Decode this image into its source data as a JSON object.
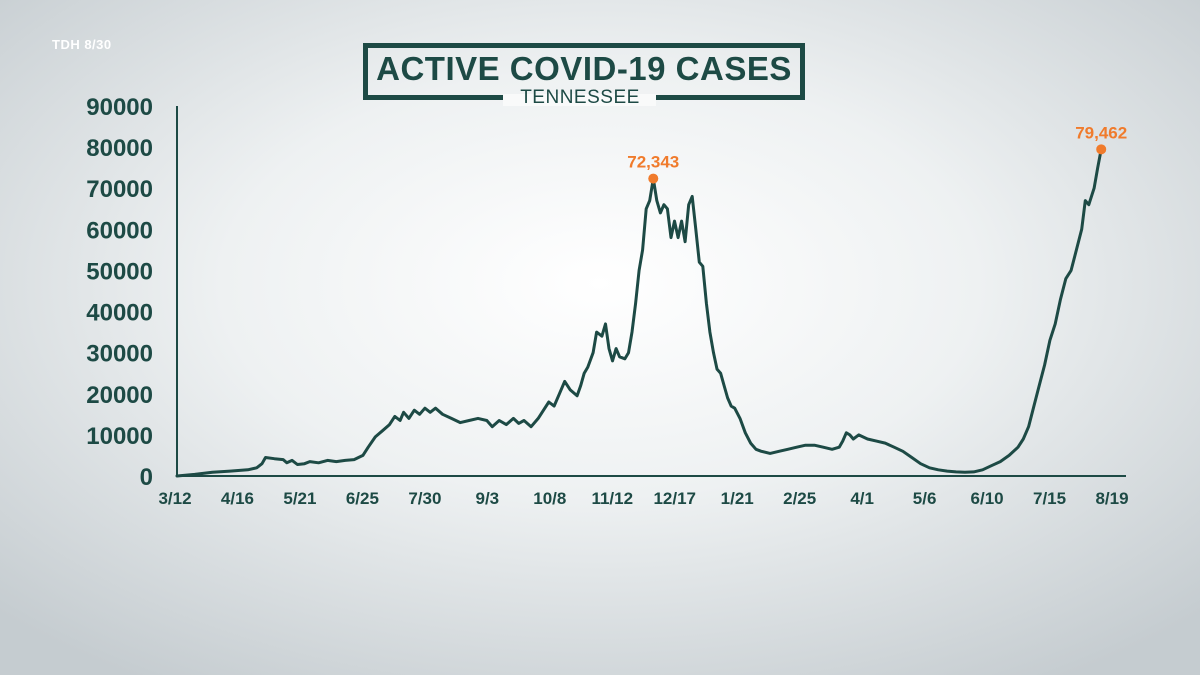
{
  "source_label": "TDH 8/30",
  "chart_data": {
    "type": "line",
    "title": "ACTIVE COVID-19 CASES",
    "subtitle": "TENNESSEE",
    "xlabel": "",
    "ylabel": "",
    "ylim": [
      0,
      90000
    ],
    "yticks": [
      0,
      10000,
      20000,
      30000,
      40000,
      50000,
      60000,
      70000,
      80000,
      90000
    ],
    "xticks": [
      "3/12",
      "4/16",
      "5/21",
      "6/25",
      "7/30",
      "9/3",
      "10/8",
      "11/12",
      "12/17",
      "1/21",
      "2/25",
      "4/1",
      "5/6",
      "6/10",
      "7/15",
      "8/19"
    ],
    "x_day_range": [
      0,
      536
    ],
    "grid": false,
    "line_color": "#1d4a45",
    "annotation_color": "#f07b2c",
    "series": [
      {
        "name": "Active cases",
        "points": [
          [
            0,
            0
          ],
          [
            10,
            400
          ],
          [
            20,
            900
          ],
          [
            30,
            1200
          ],
          [
            40,
            1500
          ],
          [
            45,
            2000
          ],
          [
            48,
            3000
          ],
          [
            50,
            4500
          ],
          [
            55,
            4200
          ],
          [
            60,
            4000
          ],
          [
            62,
            3200
          ],
          [
            65,
            3800
          ],
          [
            68,
            2800
          ],
          [
            72,
            3000
          ],
          [
            75,
            3500
          ],
          [
            80,
            3200
          ],
          [
            85,
            3800
          ],
          [
            90,
            3500
          ],
          [
            95,
            3800
          ],
          [
            100,
            4000
          ],
          [
            105,
            5000
          ],
          [
            108,
            7000
          ],
          [
            112,
            9500
          ],
          [
            116,
            11000
          ],
          [
            120,
            12500
          ],
          [
            123,
            14500
          ],
          [
            126,
            13500
          ],
          [
            128,
            15500
          ],
          [
            131,
            14000
          ],
          [
            134,
            16000
          ],
          [
            137,
            15000
          ],
          [
            140,
            16500
          ],
          [
            143,
            15500
          ],
          [
            146,
            16500
          ],
          [
            150,
            15000
          ],
          [
            155,
            14000
          ],
          [
            160,
            13000
          ],
          [
            165,
            13500
          ],
          [
            170,
            14000
          ],
          [
            175,
            13500
          ],
          [
            178,
            12000
          ],
          [
            182,
            13500
          ],
          [
            186,
            12500
          ],
          [
            190,
            14000
          ],
          [
            193,
            12800
          ],
          [
            196,
            13500
          ],
          [
            200,
            12000
          ],
          [
            204,
            14000
          ],
          [
            207,
            16000
          ],
          [
            210,
            18000
          ],
          [
            213,
            17000
          ],
          [
            216,
            20000
          ],
          [
            219,
            23000
          ],
          [
            222,
            21000
          ],
          [
            226,
            19500
          ],
          [
            228,
            22000
          ],
          [
            230,
            25000
          ],
          [
            232,
            26500
          ],
          [
            235,
            30000
          ],
          [
            237,
            35000
          ],
          [
            240,
            34000
          ],
          [
            242,
            37000
          ],
          [
            244,
            31000
          ],
          [
            246,
            28000
          ],
          [
            248,
            31000
          ],
          [
            250,
            29000
          ],
          [
            253,
            28500
          ],
          [
            255,
            30000
          ],
          [
            257,
            35000
          ],
          [
            259,
            42000
          ],
          [
            261,
            50000
          ],
          [
            263,
            55000
          ],
          [
            265,
            65000
          ],
          [
            267,
            67000
          ],
          [
            269,
            72343
          ],
          [
            271,
            67000
          ],
          [
            273,
            64000
          ],
          [
            275,
            66000
          ],
          [
            277,
            65000
          ],
          [
            279,
            58000
          ],
          [
            281,
            62000
          ],
          [
            283,
            58000
          ],
          [
            285,
            62000
          ],
          [
            287,
            57000
          ],
          [
            289,
            66000
          ],
          [
            291,
            68000
          ],
          [
            293,
            60000
          ],
          [
            295,
            52000
          ],
          [
            297,
            51000
          ],
          [
            299,
            42000
          ],
          [
            301,
            35000
          ],
          [
            303,
            30000
          ],
          [
            305,
            26000
          ],
          [
            307,
            25000
          ],
          [
            309,
            22000
          ],
          [
            311,
            19000
          ],
          [
            313,
            17000
          ],
          [
            315,
            16500
          ],
          [
            318,
            14000
          ],
          [
            321,
            10500
          ],
          [
            324,
            8000
          ],
          [
            327,
            6500
          ],
          [
            330,
            6000
          ],
          [
            335,
            5500
          ],
          [
            340,
            6000
          ],
          [
            345,
            6500
          ],
          [
            350,
            7000
          ],
          [
            355,
            7500
          ],
          [
            360,
            7500
          ],
          [
            365,
            7000
          ],
          [
            370,
            6500
          ],
          [
            374,
            7000
          ],
          [
            376,
            8500
          ],
          [
            378,
            10500
          ],
          [
            380,
            10000
          ],
          [
            382,
            9000
          ],
          [
            385,
            10000
          ],
          [
            390,
            9000
          ],
          [
            395,
            8500
          ],
          [
            400,
            8000
          ],
          [
            405,
            7000
          ],
          [
            410,
            6000
          ],
          [
            415,
            4500
          ],
          [
            420,
            3000
          ],
          [
            425,
            2000
          ],
          [
            430,
            1500
          ],
          [
            435,
            1200
          ],
          [
            440,
            1000
          ],
          [
            445,
            900
          ],
          [
            450,
            1000
          ],
          [
            455,
            1500
          ],
          [
            460,
            2500
          ],
          [
            465,
            3500
          ],
          [
            470,
            5000
          ],
          [
            475,
            7000
          ],
          [
            478,
            9000
          ],
          [
            481,
            12000
          ],
          [
            484,
            17000
          ],
          [
            487,
            22000
          ],
          [
            490,
            27000
          ],
          [
            493,
            33000
          ],
          [
            496,
            37000
          ],
          [
            499,
            43000
          ],
          [
            502,
            48000
          ],
          [
            505,
            50000
          ],
          [
            508,
            55000
          ],
          [
            511,
            60000
          ],
          [
            513,
            67000
          ],
          [
            515,
            66000
          ],
          [
            518,
            70000
          ],
          [
            520,
            75000
          ],
          [
            522,
            79462
          ]
        ]
      }
    ],
    "annotations": [
      {
        "label": "72,343",
        "x": 269,
        "y": 72343
      },
      {
        "label": "79,462",
        "x": 522,
        "y": 79462
      }
    ]
  }
}
